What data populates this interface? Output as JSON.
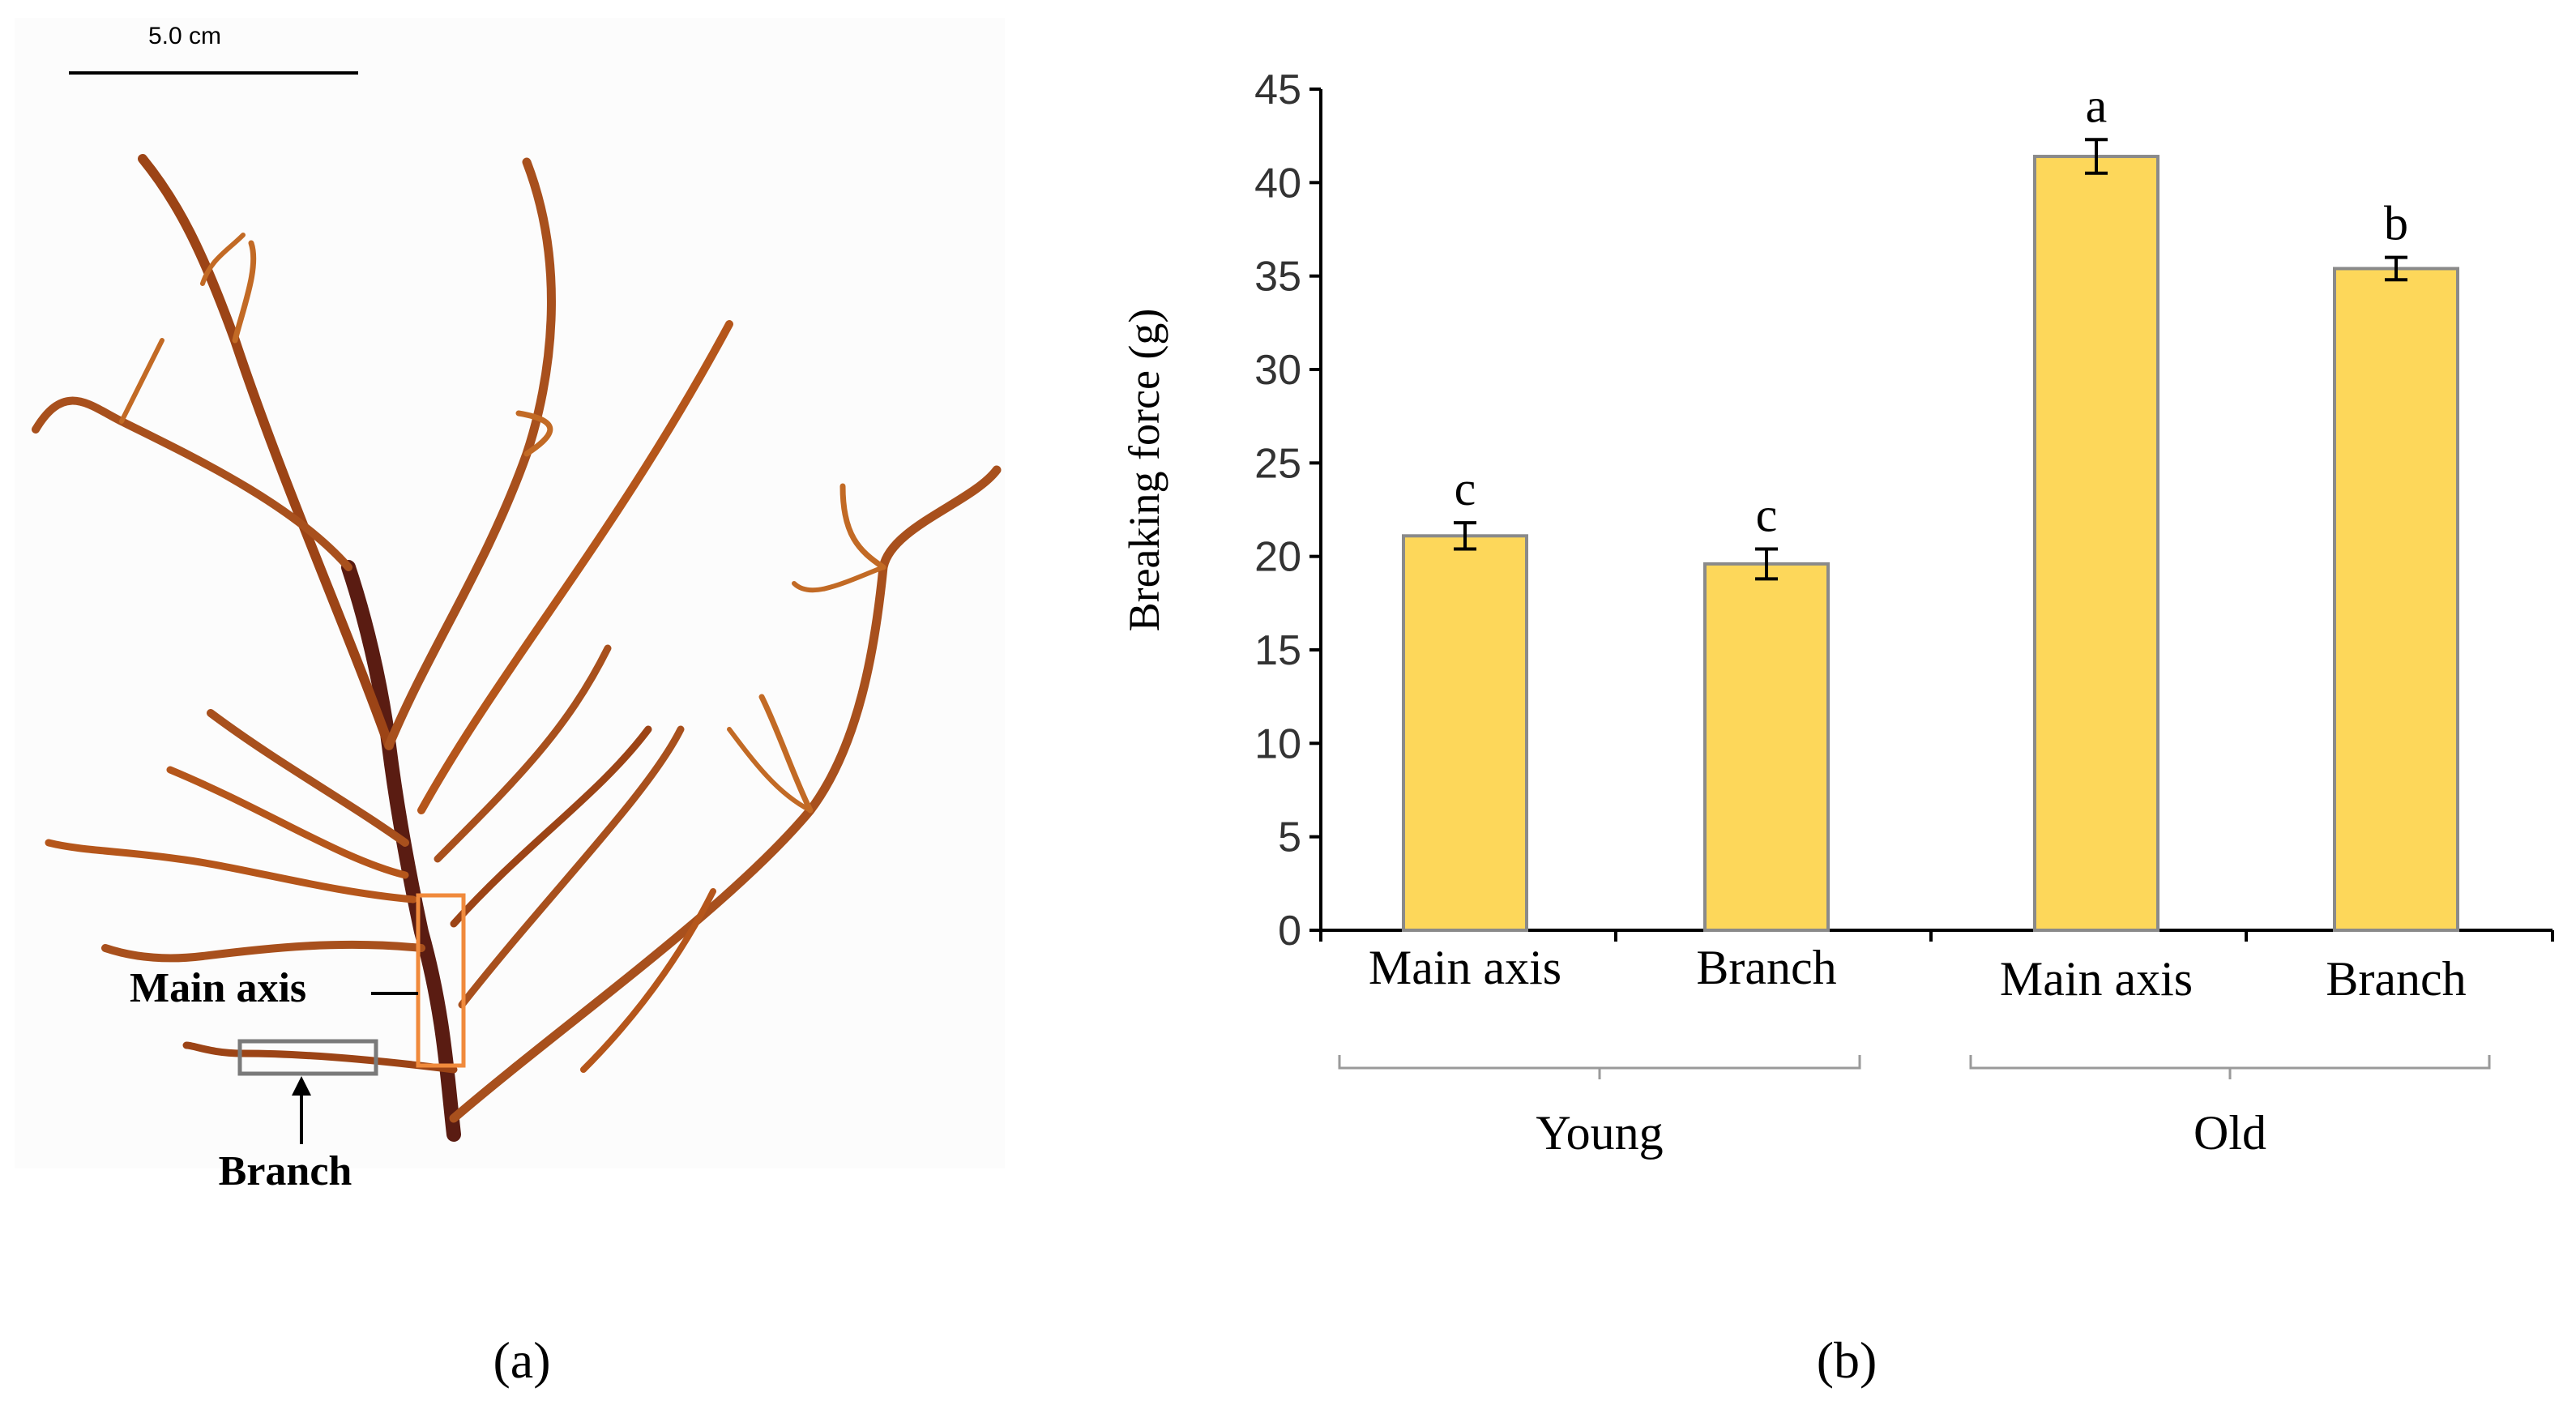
{
  "panel_a": {
    "scale_bar_label": "5.0 cm",
    "callout_main_axis": "Main axis",
    "callout_branch": "Branch",
    "panel_label": "(a)",
    "colors": {
      "algae": "#b5561b",
      "algae_dark": "#5a1c12",
      "main_axis_box": "#f08a3c",
      "branch_box": "#7a7a7a"
    }
  },
  "panel_b": {
    "panel_label": "(b)"
  },
  "chart_data": {
    "type": "bar",
    "categories": [
      "Main axis",
      "Branch",
      "Main axis",
      "Branch"
    ],
    "groups": [
      {
        "label": "Young",
        "members": [
          0,
          1
        ]
      },
      {
        "label": "Old",
        "members": [
          2,
          3
        ]
      }
    ],
    "values": [
      21.1,
      19.6,
      41.4,
      35.4
    ],
    "errors": [
      0.7,
      0.8,
      0.9,
      0.6
    ],
    "significance_letters": [
      "c",
      "c",
      "a",
      "b"
    ],
    "ylabel": "Breaking force (g)",
    "xlabel": "",
    "ylim": [
      0,
      45
    ],
    "yticks": [
      "0",
      "5",
      "10",
      "15",
      "20",
      "25",
      "30",
      "35",
      "40",
      "45"
    ],
    "grid": false,
    "colors": {
      "bar_fill": "#fdd75a",
      "bar_stroke": "#8a8a8a",
      "axis": "#000000",
      "bracket": "#9a9a9a"
    }
  }
}
